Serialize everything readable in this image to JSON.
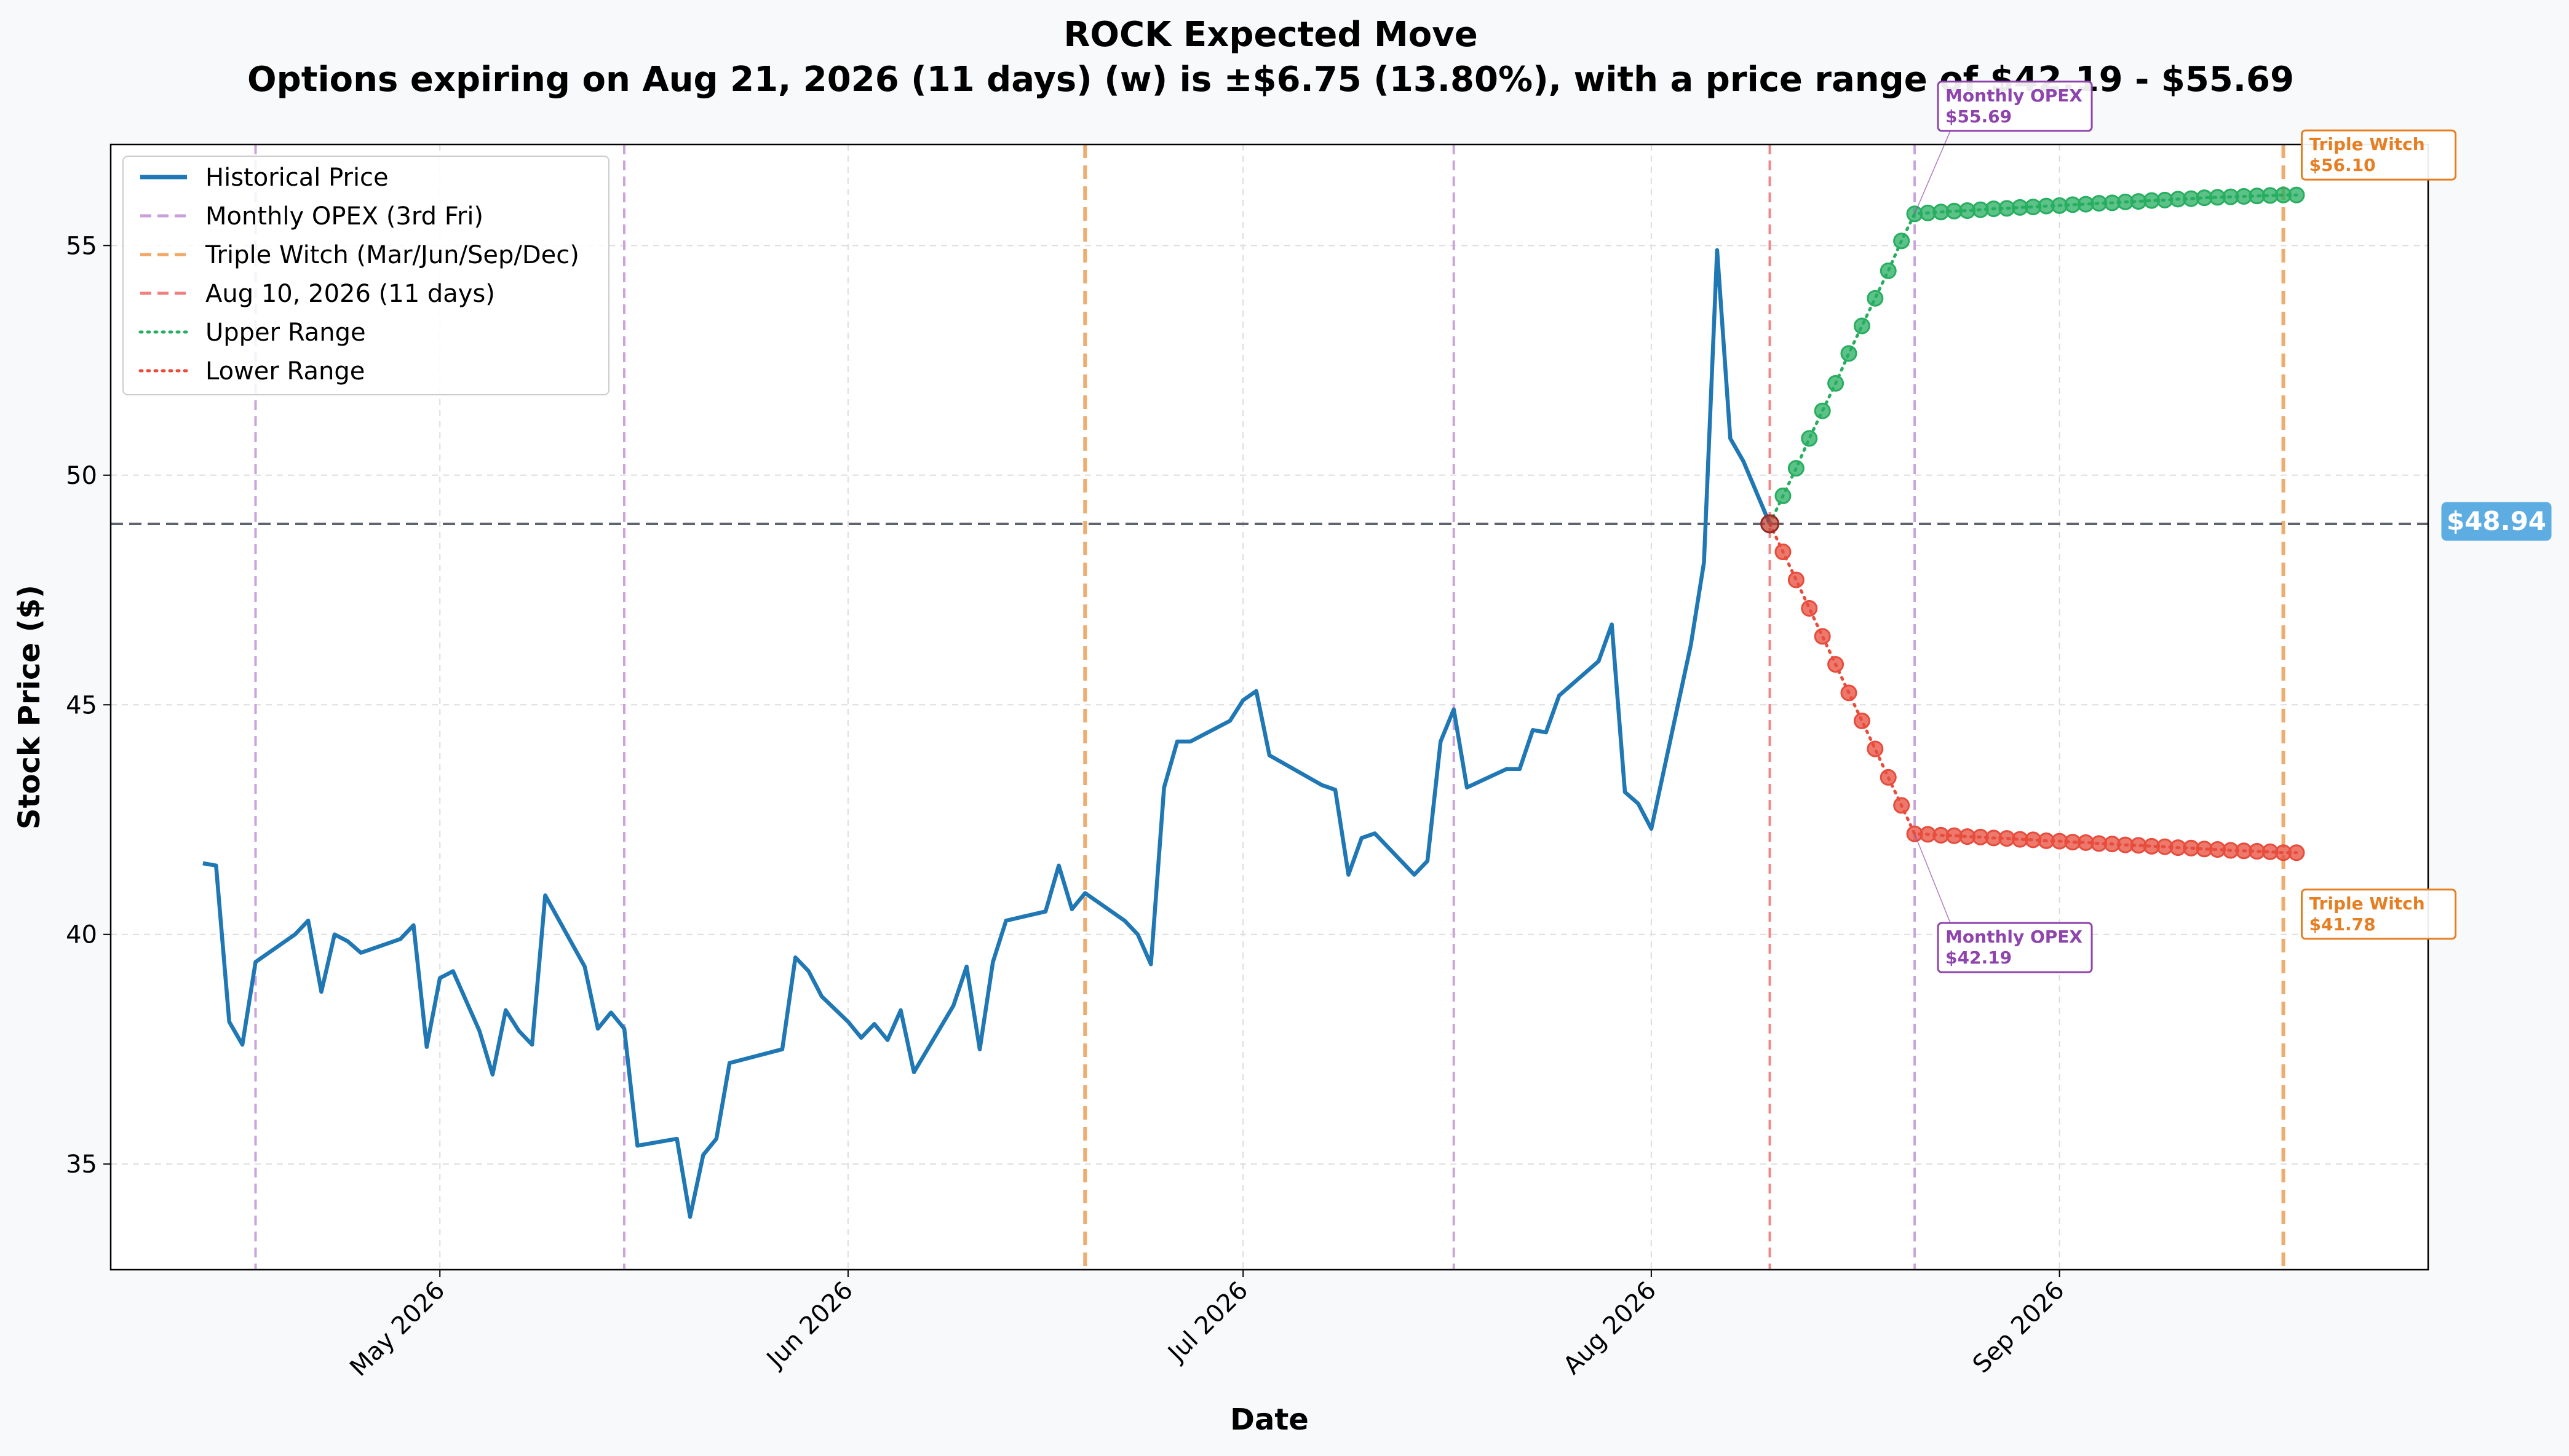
{
  "chart_data": {
    "type": "line",
    "title": "ROCK Expected Move",
    "subtitle": "Options expiring on Aug 21, 2026 (11 days) (w) is ±$6.75 (13.80%), with a price range of $42.19 - $55.69",
    "xlabel": "Date",
    "ylabel": "Stock Price ($)",
    "xlim": [
      "2026-04-06",
      "2026-09-29"
    ],
    "ylim": [
      32.7,
      57.2
    ],
    "x_ticks": [
      {
        "date": "2026-05-01",
        "label": "May 2026"
      },
      {
        "date": "2026-06-01",
        "label": "Jun 2026"
      },
      {
        "date": "2026-07-01",
        "label": "Jul 2026"
      },
      {
        "date": "2026-08-01",
        "label": "Aug 2026"
      },
      {
        "date": "2026-09-01",
        "label": "Sep 2026"
      }
    ],
    "y_ticks": [
      35,
      40,
      45,
      50,
      55
    ],
    "grid": true,
    "legend_position": "top-left",
    "legend": [
      {
        "label": "Historical Price",
        "color": "#1f77b4",
        "style": "solid"
      },
      {
        "label": "Monthly OPEX (3rd Fri)",
        "color": "#c9a0dc",
        "style": "dashed"
      },
      {
        "label": "Triple Witch (Mar/Jun/Sep/Dec)",
        "color": "#f0a868",
        "style": "dashed"
      },
      {
        "label": "Aug 10, 2026 (11 days)",
        "color": "#f08080",
        "style": "dashed"
      },
      {
        "label": "Upper Range",
        "color": "#27ae60",
        "style": "dotted"
      },
      {
        "label": "Lower Range",
        "color": "#e74c3c",
        "style": "dotted"
      }
    ],
    "current_price": 48.94,
    "current_price_label": "$48.94",
    "vlines": [
      {
        "date": "2026-04-17",
        "kind": "monthly_opex",
        "color": "#c9a0dc"
      },
      {
        "date": "2026-05-15",
        "kind": "monthly_opex",
        "color": "#c9a0dc"
      },
      {
        "date": "2026-06-19",
        "kind": "triple_witch",
        "color": "#f0a868"
      },
      {
        "date": "2026-07-17",
        "kind": "monthly_opex",
        "color": "#c9a0dc"
      },
      {
        "date": "2026-08-10",
        "kind": "current",
        "color": "#f08080"
      },
      {
        "date": "2026-08-21",
        "kind": "monthly_opex",
        "color": "#c9a0dc"
      },
      {
        "date": "2026-09-18",
        "kind": "triple_witch",
        "color": "#f0a868"
      }
    ],
    "series": [
      {
        "name": "Historical Price",
        "color": "#1f77b4",
        "points": [
          [
            "2026-04-13",
            41.55
          ],
          [
            "2026-04-14",
            41.5
          ],
          [
            "2026-04-15",
            38.1
          ],
          [
            "2026-04-16",
            37.6
          ],
          [
            "2026-04-17",
            39.4
          ],
          [
            "2026-04-20",
            40.0
          ],
          [
            "2026-04-21",
            40.3
          ],
          [
            "2026-04-22",
            38.75
          ],
          [
            "2026-04-23",
            40.0
          ],
          [
            "2026-04-24",
            39.85
          ],
          [
            "2026-04-25",
            39.6
          ],
          [
            "2026-04-28",
            39.9
          ],
          [
            "2026-04-29",
            40.2
          ],
          [
            "2026-04-30",
            37.55
          ],
          [
            "2026-05-01",
            39.05
          ],
          [
            "2026-05-02",
            39.2
          ],
          [
            "2026-05-04",
            37.9
          ],
          [
            "2026-05-05",
            36.95
          ],
          [
            "2026-05-06",
            38.35
          ],
          [
            "2026-05-07",
            37.9
          ],
          [
            "2026-05-08",
            37.6
          ],
          [
            "2026-05-09",
            40.85
          ],
          [
            "2026-05-12",
            39.3
          ],
          [
            "2026-05-13",
            37.95
          ],
          [
            "2026-05-14",
            38.3
          ],
          [
            "2026-05-15",
            37.95
          ],
          [
            "2026-05-16",
            35.4
          ],
          [
            "2026-05-19",
            35.55
          ],
          [
            "2026-05-20",
            33.85
          ],
          [
            "2026-05-21",
            35.2
          ],
          [
            "2026-05-22",
            35.55
          ],
          [
            "2026-05-23",
            37.2
          ],
          [
            "2026-05-27",
            37.5
          ],
          [
            "2026-05-28",
            39.5
          ],
          [
            "2026-05-29",
            39.2
          ],
          [
            "2026-05-30",
            38.65
          ],
          [
            "2026-06-01",
            38.1
          ],
          [
            "2026-06-02",
            37.75
          ],
          [
            "2026-06-03",
            38.05
          ],
          [
            "2026-06-04",
            37.7
          ],
          [
            "2026-06-05",
            38.35
          ],
          [
            "2026-06-06",
            37.0
          ],
          [
            "2026-06-09",
            38.45
          ],
          [
            "2026-06-10",
            39.3
          ],
          [
            "2026-06-11",
            37.5
          ],
          [
            "2026-06-12",
            39.4
          ],
          [
            "2026-06-13",
            40.3
          ],
          [
            "2026-06-16",
            40.5
          ],
          [
            "2026-06-17",
            41.5
          ],
          [
            "2026-06-18",
            40.55
          ],
          [
            "2026-06-19",
            40.9
          ],
          [
            "2026-06-22",
            40.3
          ],
          [
            "2026-06-23",
            40.0
          ],
          [
            "2026-06-24",
            39.35
          ],
          [
            "2026-06-25",
            43.2
          ],
          [
            "2026-06-26",
            44.2
          ],
          [
            "2026-06-27",
            44.2
          ],
          [
            "2026-06-30",
            44.65
          ],
          [
            "2026-07-01",
            45.1
          ],
          [
            "2026-07-02",
            45.3
          ],
          [
            "2026-07-03",
            43.9
          ],
          [
            "2026-07-07",
            43.25
          ],
          [
            "2026-07-08",
            43.15
          ],
          [
            "2026-07-09",
            41.3
          ],
          [
            "2026-07-10",
            42.1
          ],
          [
            "2026-07-11",
            42.2
          ],
          [
            "2026-07-14",
            41.3
          ],
          [
            "2026-07-15",
            41.6
          ],
          [
            "2026-07-16",
            44.2
          ],
          [
            "2026-07-17",
            44.9
          ],
          [
            "2026-07-18",
            43.2
          ],
          [
            "2026-07-21",
            43.6
          ],
          [
            "2026-07-22",
            43.6
          ],
          [
            "2026-07-23",
            44.45
          ],
          [
            "2026-07-24",
            44.4
          ],
          [
            "2026-07-25",
            45.2
          ],
          [
            "2026-07-28",
            45.95
          ],
          [
            "2026-07-29",
            46.75
          ],
          [
            "2026-07-30",
            43.1
          ],
          [
            "2026-07-31",
            42.85
          ],
          [
            "2026-08-01",
            42.3
          ],
          [
            "2026-08-04",
            46.3
          ],
          [
            "2026-08-05",
            48.1
          ],
          [
            "2026-08-06",
            54.9
          ],
          [
            "2026-08-07",
            50.8
          ],
          [
            "2026-08-08",
            50.3
          ],
          [
            "2026-08-10",
            48.94
          ]
        ]
      },
      {
        "name": "Upper Range",
        "color": "#27ae60",
        "points": [
          [
            "2026-08-10",
            48.94
          ],
          [
            "2026-08-11",
            49.55
          ],
          [
            "2026-08-12",
            50.15
          ],
          [
            "2026-08-13",
            50.8
          ],
          [
            "2026-08-14",
            51.4
          ],
          [
            "2026-08-15",
            52.0
          ],
          [
            "2026-08-16",
            52.65
          ],
          [
            "2026-08-17",
            53.25
          ],
          [
            "2026-08-18",
            53.85
          ],
          [
            "2026-08-19",
            54.45
          ],
          [
            "2026-08-20",
            55.1
          ],
          [
            "2026-08-21",
            55.69
          ],
          [
            "2026-08-22",
            55.71
          ],
          [
            "2026-08-23",
            55.73
          ],
          [
            "2026-08-24",
            55.75
          ],
          [
            "2026-08-25",
            55.76
          ],
          [
            "2026-08-26",
            55.78
          ],
          [
            "2026-08-27",
            55.8
          ],
          [
            "2026-08-28",
            55.81
          ],
          [
            "2026-08-29",
            55.83
          ],
          [
            "2026-08-30",
            55.84
          ],
          [
            "2026-08-31",
            55.86
          ],
          [
            "2026-09-01",
            55.87
          ],
          [
            "2026-09-02",
            55.89
          ],
          [
            "2026-09-03",
            55.9
          ],
          [
            "2026-09-04",
            55.92
          ],
          [
            "2026-09-05",
            55.93
          ],
          [
            "2026-09-06",
            55.95
          ],
          [
            "2026-09-07",
            55.96
          ],
          [
            "2026-09-08",
            55.98
          ],
          [
            "2026-09-09",
            55.99
          ],
          [
            "2026-09-10",
            56.01
          ],
          [
            "2026-09-11",
            56.02
          ],
          [
            "2026-09-12",
            56.04
          ],
          [
            "2026-09-13",
            56.05
          ],
          [
            "2026-09-14",
            56.06
          ],
          [
            "2026-09-15",
            56.07
          ],
          [
            "2026-09-16",
            56.08
          ],
          [
            "2026-09-17",
            56.09
          ],
          [
            "2026-09-18",
            56.1
          ],
          [
            "2026-09-19",
            56.1
          ]
        ]
      },
      {
        "name": "Lower Range",
        "color": "#e74c3c",
        "points": [
          [
            "2026-08-10",
            48.94
          ],
          [
            "2026-08-11",
            48.33
          ],
          [
            "2026-08-12",
            47.72
          ],
          [
            "2026-08-13",
            47.1
          ],
          [
            "2026-08-14",
            46.49
          ],
          [
            "2026-08-15",
            45.88
          ],
          [
            "2026-08-16",
            45.26
          ],
          [
            "2026-08-17",
            44.65
          ],
          [
            "2026-08-18",
            44.04
          ],
          [
            "2026-08-19",
            43.42
          ],
          [
            "2026-08-20",
            42.81
          ],
          [
            "2026-08-21",
            42.19
          ],
          [
            "2026-08-22",
            42.18
          ],
          [
            "2026-08-23",
            42.16
          ],
          [
            "2026-08-24",
            42.15
          ],
          [
            "2026-08-25",
            42.13
          ],
          [
            "2026-08-26",
            42.12
          ],
          [
            "2026-08-27",
            42.1
          ],
          [
            "2026-08-28",
            42.09
          ],
          [
            "2026-08-29",
            42.07
          ],
          [
            "2026-08-30",
            42.06
          ],
          [
            "2026-08-31",
            42.04
          ],
          [
            "2026-09-01",
            42.03
          ],
          [
            "2026-09-02",
            42.01
          ],
          [
            "2026-09-03",
            42.0
          ],
          [
            "2026-09-04",
            41.98
          ],
          [
            "2026-09-05",
            41.97
          ],
          [
            "2026-09-06",
            41.95
          ],
          [
            "2026-09-07",
            41.94
          ],
          [
            "2026-09-08",
            41.92
          ],
          [
            "2026-09-09",
            41.91
          ],
          [
            "2026-09-10",
            41.89
          ],
          [
            "2026-09-11",
            41.88
          ],
          [
            "2026-09-12",
            41.86
          ],
          [
            "2026-09-13",
            41.85
          ],
          [
            "2026-09-14",
            41.83
          ],
          [
            "2026-09-15",
            41.82
          ],
          [
            "2026-09-16",
            41.81
          ],
          [
            "2026-09-17",
            41.8
          ],
          [
            "2026-09-18",
            41.78
          ],
          [
            "2026-09-19",
            41.78
          ]
        ]
      }
    ],
    "annotations": [
      {
        "id": "opex-upper",
        "line1": "Monthly OPEX",
        "line2": "$55.69",
        "date": "2026-08-21",
        "value": 55.69,
        "color": "#8e44ad",
        "placement": "above"
      },
      {
        "id": "opex-lower",
        "line1": "Monthly OPEX",
        "line2": "$42.19",
        "date": "2026-08-21",
        "value": 42.19,
        "color": "#8e44ad",
        "placement": "below"
      },
      {
        "id": "tw-upper",
        "line1": "Triple Witch",
        "line2": "$56.10",
        "date": "2026-09-18",
        "value": 56.1,
        "color": "#e67e22",
        "placement": "above-right"
      },
      {
        "id": "tw-lower",
        "line1": "Triple Witch",
        "line2": "$41.78",
        "date": "2026-09-18",
        "value": 41.78,
        "color": "#e67e22",
        "placement": "below-right"
      }
    ]
  }
}
